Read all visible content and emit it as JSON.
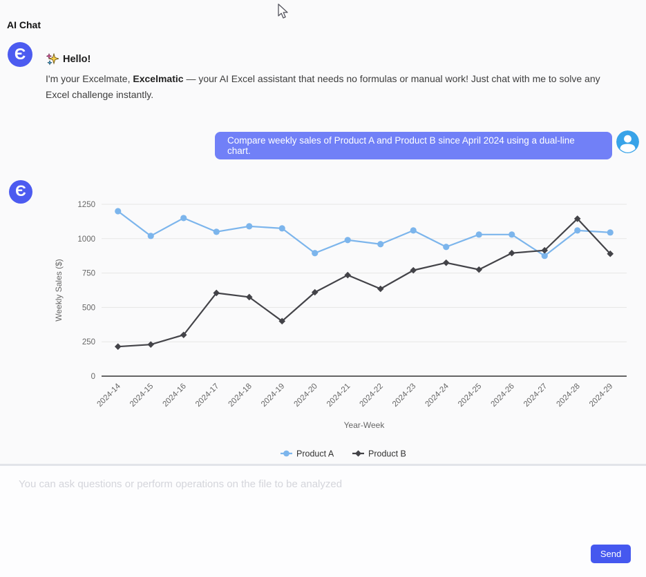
{
  "page": {
    "title": "AI Chat"
  },
  "assistant_intro": {
    "greeting": "Hello!",
    "body_prefix": "I'm your Excelmate, ",
    "body_bold": "Excelmatic",
    "body_suffix": " — your AI Excel assistant that needs no formulas or manual work! Just chat with me to solve any Excel challenge instantly."
  },
  "user_message": {
    "text": "Compare weekly sales of Product A and Product B since April 2024 using a dual-line chart."
  },
  "chart_data": {
    "type": "line",
    "categories": [
      "2024-14",
      "2024-15",
      "2024-16",
      "2024-17",
      "2024-18",
      "2024-19",
      "2024-20",
      "2024-21",
      "2024-22",
      "2024-23",
      "2024-24",
      "2024-25",
      "2024-26",
      "2024-27",
      "2024-28",
      "2024-29"
    ],
    "series": [
      {
        "name": "Product A",
        "color": "#7cb5ec",
        "marker": "circle",
        "values": [
          1200,
          1020,
          1150,
          1050,
          1090,
          1075,
          895,
          990,
          960,
          1060,
          940,
          1030,
          1030,
          875,
          1060,
          1045
        ]
      },
      {
        "name": "Product B",
        "color": "#434348",
        "marker": "diamond",
        "values": [
          215,
          230,
          300,
          605,
          575,
          400,
          610,
          735,
          635,
          770,
          825,
          775,
          895,
          915,
          1145,
          890
        ]
      }
    ],
    "title": "",
    "xlabel": "Year-Week",
    "ylabel": "Weekly Sales ($)",
    "ylim": [
      0,
      1250
    ],
    "yticks": [
      0,
      250,
      500,
      750,
      1000,
      1250
    ],
    "grid": true,
    "legend_position": "bottom",
    "grid_color": "#e6e6e6",
    "axis_line_color": "#333333",
    "tick_label_color": "#666666",
    "axis_title_color": "#666666",
    "legend_text_color": "#333333"
  },
  "composer": {
    "placeholder": "You can ask questions or perform operations on the file to be analyzed",
    "send_label": "Send"
  },
  "colors": {
    "accent": "#4c5bf0",
    "user_bubble": "#7180f7",
    "user_avatar": "#38a3e8",
    "send_button": "#4558ef"
  }
}
